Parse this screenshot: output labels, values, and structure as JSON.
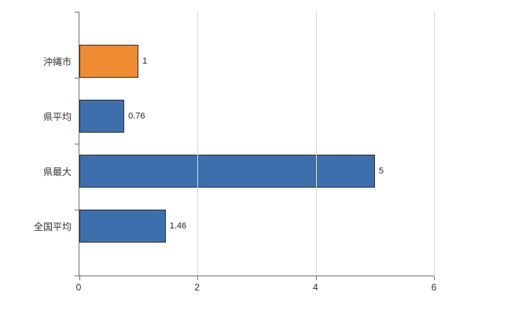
{
  "chart_data": {
    "type": "bar",
    "orientation": "horizontal",
    "title": "",
    "xlabel": "",
    "ylabel": "",
    "categories": [
      "沖縄市",
      "県平均",
      "県最大",
      "全国平均"
    ],
    "values": [
      1,
      0.76,
      5,
      1.46
    ],
    "value_labels": [
      "1",
      "0.76",
      "5",
      "1.46"
    ],
    "bar_colors": [
      "#ef8c31",
      "#3d6fad",
      "#3d6fad",
      "#3d6fad"
    ],
    "xlim": [
      0,
      6
    ],
    "x_ticks": [
      0,
      2,
      4,
      6
    ],
    "x_tick_labels": [
      "0",
      "2",
      "4",
      "6"
    ],
    "grid": true,
    "legend": false,
    "colors": {
      "highlight_bar": "#ef8c31",
      "default_bar": "#3d6fad",
      "bar_border": "#2f2f2f",
      "gridline": "#d9d9d9",
      "axis": "#707070",
      "text": "#333333",
      "background": "#ffffff"
    }
  }
}
